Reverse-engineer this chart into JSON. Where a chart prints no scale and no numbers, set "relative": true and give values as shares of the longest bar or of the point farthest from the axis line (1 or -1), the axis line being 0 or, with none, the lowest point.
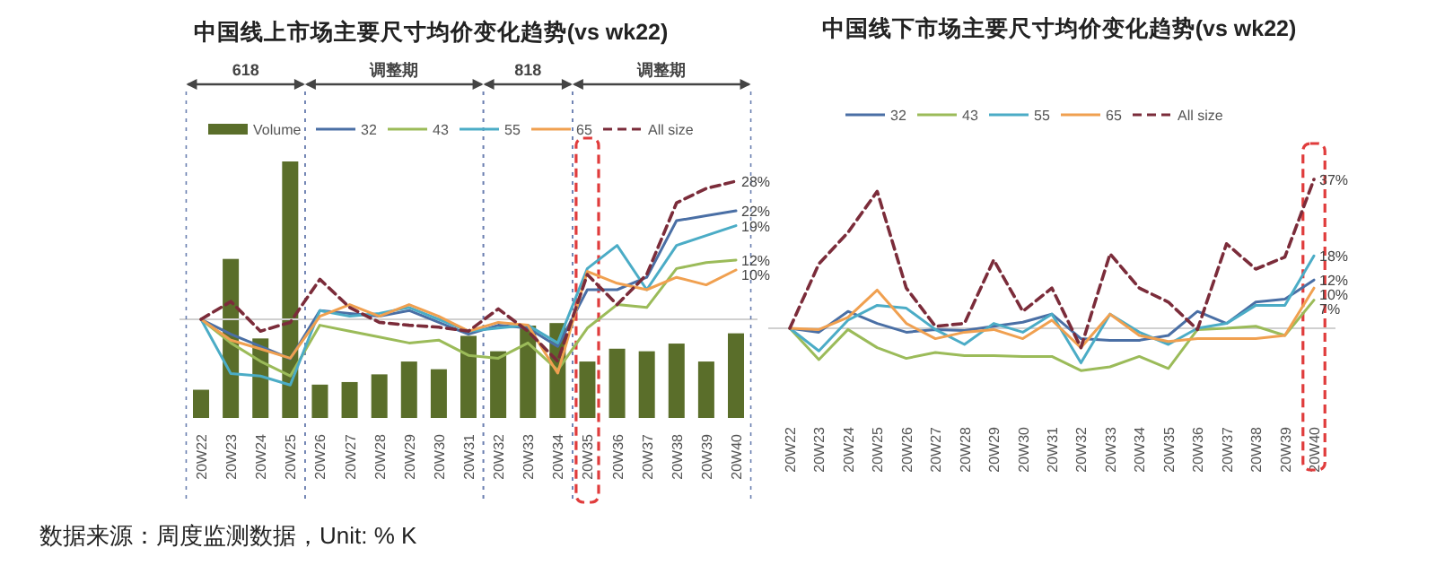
{
  "chart_data": [
    {
      "type": "bar",
      "relative": true,
      "legend": "top",
      "categories": [
        null,
        null,
        null,
        null,
        null,
        null,
        null,
        null,
        null,
        null,
        null,
        null,
        null,
        null,
        null,
        null,
        null,
        null,
        null
      ],
      "series": [
        {
          "name": "Volume",
          "color": "#5a6e2a",
          "values": [
            0.11,
            0.62,
            0.31,
            1,
            0.13,
            0.14,
            0.17,
            0.22,
            0.19,
            0.32,
            0.26,
            0.36,
            0.37,
            0.22,
            0.27,
            0.26,
            0.29,
            0.22,
            0.33
          ]
        }
      ]
    },
    {
      "type": "line",
      "title": "中国线上市场主要尺寸均价变化趋势(vs wk22)",
      "categories": [
        "20W22",
        "20W23",
        "20W24",
        "20W25",
        "20W26",
        "20W27",
        "20W28",
        "20W29",
        "20W30",
        "20W31",
        "20W32",
        "20W33",
        "20W34",
        "20W35",
        "20W36",
        "20W37",
        "20W38",
        "20W39",
        "20W40"
      ],
      "series": [
        {
          "name": "32",
          "color": "#4a6fa5",
          "values": [
            0,
            -3,
            -5.5,
            -8,
            1.8,
            1.2,
            0.6,
            1.8,
            -0.6,
            -3,
            -1.2,
            -1.8,
            -5.5,
            6,
            6,
            8.5,
            20,
            21,
            22
          ],
          "value_labels": [
            null,
            null,
            null,
            null,
            null,
            null,
            null,
            null,
            null,
            null,
            null,
            null,
            null,
            null,
            null,
            null,
            null,
            null,
            "22%"
          ]
        },
        {
          "name": "43",
          "color": "#9bbb59",
          "values": [
            0,
            -4.8,
            -8.5,
            -11.5,
            -1.2,
            -2.4,
            -3.6,
            -4.8,
            -4.2,
            -7.3,
            -7.9,
            -4.8,
            -10.3,
            -1.8,
            3,
            2.4,
            10.3,
            11.5,
            12
          ],
          "value_labels": [
            null,
            null,
            null,
            null,
            null,
            null,
            null,
            null,
            null,
            null,
            null,
            null,
            null,
            null,
            null,
            null,
            null,
            null,
            "12%"
          ]
        },
        {
          "name": "55",
          "color": "#4bacc6",
          "values": [
            0,
            -11,
            -11.5,
            -13.3,
            1.8,
            0.6,
            1.2,
            2.4,
            0,
            -2.4,
            -1.8,
            -1.2,
            -4.8,
            10.3,
            15,
            6,
            15,
            17,
            19
          ],
          "value_labels": [
            null,
            null,
            null,
            null,
            null,
            null,
            null,
            null,
            null,
            null,
            null,
            null,
            null,
            null,
            null,
            null,
            null,
            null,
            "19%"
          ]
        },
        {
          "name": "65",
          "color": "#f0a050",
          "values": [
            0,
            -4.2,
            -6,
            -7.9,
            0.6,
            3,
            0.6,
            3,
            0.6,
            -2.4,
            -0.6,
            -1.2,
            -10.9,
            9.7,
            7.3,
            6,
            8.5,
            7,
            10
          ],
          "value_labels": [
            null,
            null,
            null,
            null,
            null,
            null,
            null,
            null,
            null,
            null,
            null,
            null,
            null,
            null,
            null,
            null,
            null,
            null,
            "10%"
          ]
        },
        {
          "name": "All size",
          "color": "#7b2c3a",
          "line_style": "dashed",
          "values": [
            0,
            3.6,
            -2.4,
            -0.6,
            8.1,
            2.4,
            -0.6,
            -1.2,
            -1.6,
            -2.4,
            2.1,
            -2.4,
            -8.5,
            9.1,
            3,
            9.1,
            23.6,
            26.5,
            28
          ],
          "value_labels": [
            null,
            null,
            null,
            null,
            null,
            null,
            null,
            null,
            null,
            null,
            null,
            null,
            null,
            null,
            null,
            null,
            null,
            null,
            "28%"
          ]
        }
      ],
      "legend": "top",
      "annotations": [
        "618",
        "调整期",
        "818",
        "调整期",
        "数据来源：周度监测数据，Unit: % K"
      ]
    },
    {
      "type": "line",
      "title": "中国线下市场主要尺寸均价变化趋势(vs wk22)",
      "categories": [
        "20W22",
        "20W23",
        "20W24",
        "20W25",
        "20W26",
        "20W27",
        "20W28",
        "20W29",
        "20W30",
        "20W31",
        "20W32",
        "20W33",
        "20W34",
        "20W35",
        "20W36",
        "20W37",
        "20W38",
        "20W39",
        "20W40"
      ],
      "series": [
        {
          "name": "32",
          "color": "#4a6fa5",
          "values": [
            0,
            -1,
            4.2,
            1.2,
            -1,
            -0.3,
            -0.6,
            0.5,
            1.5,
            3.5,
            -2.6,
            -3,
            -3,
            -1.8,
            4.2,
            1.2,
            6.5,
            7.2,
            12
          ],
          "value_labels": [
            null,
            null,
            null,
            null,
            null,
            null,
            null,
            null,
            null,
            null,
            null,
            null,
            null,
            null,
            null,
            null,
            null,
            null,
            "12%"
          ]
        },
        {
          "name": "43",
          "color": "#9bbb59",
          "values": [
            0,
            -7.8,
            -0.3,
            -4.8,
            -7.5,
            -6,
            -6.8,
            -6.8,
            -7,
            -7,
            -10.5,
            -9.6,
            -7,
            -10,
            -0.3,
            0,
            0.5,
            -1.8,
            7
          ],
          "value_labels": [
            null,
            null,
            null,
            null,
            null,
            null,
            null,
            null,
            null,
            null,
            null,
            null,
            null,
            null,
            null,
            null,
            null,
            null,
            "7%"
          ]
        },
        {
          "name": "55",
          "color": "#4bacc6",
          "values": [
            0,
            -5.6,
            2,
            5.7,
            5,
            -0.3,
            -4,
            1.2,
            -1,
            3.5,
            -8.6,
            3.5,
            -1,
            -4,
            0,
            1.2,
            5.7,
            5.7,
            18
          ],
          "value_labels": [
            null,
            null,
            null,
            null,
            null,
            null,
            null,
            null,
            null,
            null,
            null,
            null,
            null,
            null,
            null,
            null,
            null,
            null,
            "18%"
          ]
        },
        {
          "name": "65",
          "color": "#f0a050",
          "values": [
            0,
            -0.3,
            2.7,
            9.5,
            1.2,
            -2.6,
            -1,
            -0.3,
            -2.6,
            2,
            -4.8,
            3.5,
            -1.8,
            -3.3,
            -2.6,
            -2.6,
            -2.6,
            -1.8,
            10
          ],
          "value_labels": [
            null,
            null,
            null,
            null,
            null,
            null,
            null,
            null,
            null,
            null,
            null,
            null,
            null,
            null,
            null,
            null,
            null,
            null,
            "10%"
          ]
        },
        {
          "name": "All size",
          "color": "#7b2c3a",
          "line_style": "dashed",
          "values": [
            0,
            16,
            23.8,
            34,
            10,
            0.5,
            1.2,
            17,
            4.2,
            10,
            -4.8,
            18.5,
            10,
            6.5,
            -0.3,
            21,
            14.7,
            17.7,
            37
          ],
          "value_labels": [
            null,
            null,
            null,
            null,
            null,
            null,
            null,
            null,
            null,
            null,
            null,
            null,
            null,
            null,
            null,
            null,
            null,
            null,
            "37%"
          ]
        }
      ],
      "legend": "top"
    }
  ]
}
